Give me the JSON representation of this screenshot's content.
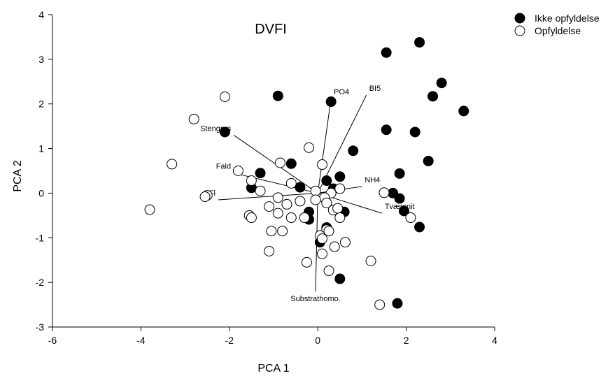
{
  "chart_data": {
    "type": "scatter",
    "title": "DVFI",
    "xlabel": "PCA 1",
    "ylabel": "PCA 2",
    "xlim": [
      -6,
      4
    ],
    "ylim": [
      -3,
      4
    ],
    "xticks": [
      "-6",
      "-4",
      "-2",
      "0",
      "2",
      "4"
    ],
    "yticks": [
      "-3",
      "-2",
      "-1",
      "0",
      "1",
      "2",
      "3",
      "4"
    ],
    "grid": false,
    "legend_position": "top-right",
    "series": [
      {
        "name": "Ikke opfyldelse",
        "marker": "filled-circle",
        "color": "#000000",
        "points": [
          [
            2.3,
            3.38
          ],
          [
            1.55,
            3.15
          ],
          [
            2.8,
            2.47
          ],
          [
            2.6,
            2.17
          ],
          [
            0.3,
            2.05
          ],
          [
            -0.9,
            2.18
          ],
          [
            3.3,
            1.84
          ],
          [
            1.55,
            1.42
          ],
          [
            2.2,
            1.37
          ],
          [
            -2.1,
            1.37
          ],
          [
            0.8,
            0.95
          ],
          [
            2.5,
            0.72
          ],
          [
            -0.6,
            0.66
          ],
          [
            -1.3,
            0.45
          ],
          [
            1.85,
            0.44
          ],
          [
            0.5,
            0.37
          ],
          [
            0.2,
            0.28
          ],
          [
            -1.5,
            0.12
          ],
          [
            -0.4,
            0.13
          ],
          [
            0.35,
            0.1
          ],
          [
            1.7,
            0.0
          ],
          [
            1.85,
            -0.12
          ],
          [
            1.95,
            -0.4
          ],
          [
            -0.2,
            -0.42
          ],
          [
            0.6,
            -0.42
          ],
          [
            -0.2,
            -0.59
          ],
          [
            0.2,
            -0.77
          ],
          [
            2.3,
            -0.76
          ],
          [
            0.05,
            -1.1
          ],
          [
            0.5,
            -1.92
          ],
          [
            1.8,
            -2.47
          ]
        ]
      },
      {
        "name": "Opfyldelse",
        "marker": "open-circle",
        "color": "#000000",
        "points": [
          [
            -2.1,
            2.16
          ],
          [
            -2.8,
            1.66
          ],
          [
            -0.2,
            1.02
          ],
          [
            -3.3,
            0.65
          ],
          [
            -0.85,
            0.68
          ],
          [
            0.1,
            0.64
          ],
          [
            -1.8,
            0.5
          ],
          [
            -1.5,
            0.28
          ],
          [
            -1.3,
            0.05
          ],
          [
            -0.6,
            0.22
          ],
          [
            0.5,
            0.1
          ],
          [
            0.3,
            0.0
          ],
          [
            -2.5,
            -0.05
          ],
          [
            -2.55,
            -0.08
          ],
          [
            1.5,
            0.01
          ],
          [
            -0.05,
            0.05
          ],
          [
            0.15,
            -0.1
          ],
          [
            -0.9,
            -0.1
          ],
          [
            -0.4,
            -0.18
          ],
          [
            -0.7,
            -0.25
          ],
          [
            -0.05,
            -0.15
          ],
          [
            0.2,
            -0.22
          ],
          [
            0.35,
            -0.38
          ],
          [
            -1.1,
            -0.3
          ],
          [
            0.45,
            -0.34
          ],
          [
            -3.8,
            -0.37
          ],
          [
            -1.55,
            -0.5
          ],
          [
            -1.5,
            -0.55
          ],
          [
            -0.9,
            -0.45
          ],
          [
            -0.3,
            -0.55
          ],
          [
            -0.6,
            -0.55
          ],
          [
            0.5,
            -0.55
          ],
          [
            2.1,
            -0.55
          ],
          [
            -1.05,
            -0.85
          ],
          [
            -0.8,
            -0.85
          ],
          [
            0.2,
            -0.82
          ],
          [
            0.25,
            -0.85
          ],
          [
            0.05,
            -0.95
          ],
          [
            0.1,
            -1.02
          ],
          [
            0.62,
            -1.1
          ],
          [
            0.38,
            -1.2
          ],
          [
            -1.1,
            -1.3
          ],
          [
            0.1,
            -1.36
          ],
          [
            1.2,
            -1.52
          ],
          [
            -0.25,
            -1.55
          ],
          [
            0.25,
            -1.74
          ],
          [
            1.4,
            -2.5
          ]
        ]
      }
    ],
    "vectors": [
      {
        "label": "PO4",
        "end": [
          0.3,
          2.12
        ],
        "label_anchor": "start"
      },
      {
        "label": "BI5",
        "end": [
          1.1,
          2.2
        ],
        "label_anchor": "start"
      },
      {
        "label": "Stengrus",
        "end": [
          -1.9,
          1.3
        ],
        "label_anchor": "end"
      },
      {
        "label": "Fald",
        "end": [
          -1.9,
          0.45
        ],
        "label_anchor": "end"
      },
      {
        "label": "Fl",
        "end": [
          -2.25,
          -0.15
        ],
        "label_anchor": "end"
      },
      {
        "label": "NH4",
        "end": [
          1.0,
          0.15
        ],
        "label_anchor": "start"
      },
      {
        "label": "Tværsnit",
        "end": [
          1.45,
          -0.45
        ],
        "label_anchor": "start"
      },
      {
        "label": "Substrathomo.",
        "end": [
          -0.05,
          -2.2
        ],
        "label_anchor": "middle"
      }
    ]
  }
}
